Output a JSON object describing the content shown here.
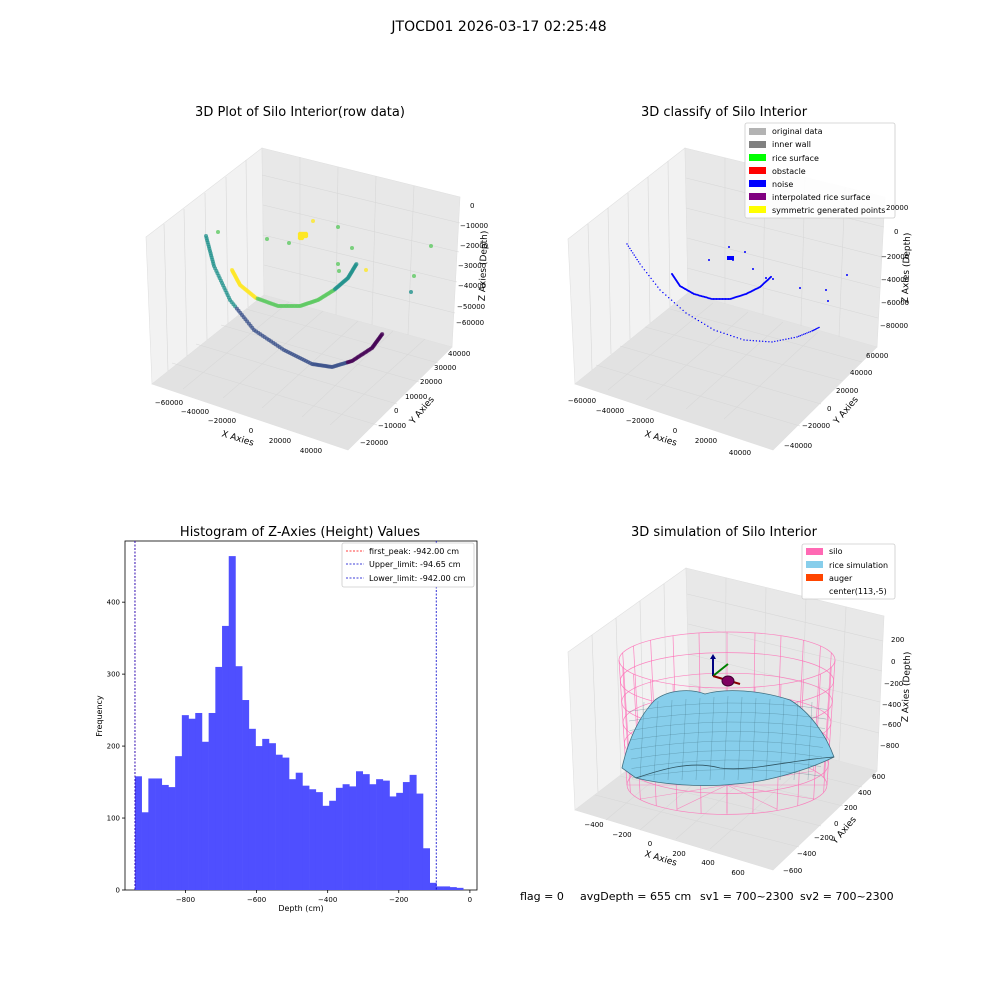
{
  "figure": {
    "suptitle": "JTOCD01 2026-03-17 02:25:48",
    "footer": {
      "flag": "flag = 0",
      "avg_depth": "avgDepth = 655 cm",
      "sv1": "sv1 = 700~2300",
      "sv2": "sv2 = 700~2300"
    }
  },
  "colors": {
    "histogram_bar": "#4f4fff",
    "first_peak_line": "#ff0000",
    "limit_line": "#0000cc",
    "pane": "#f2f2f2",
    "grid": "#d9d9d9",
    "viridis": [
      "#440154",
      "#3b528b",
      "#21918c",
      "#5ec962",
      "#fde725"
    ],
    "classify_blue": "#0000ff",
    "silo_pink": "#ff69b4",
    "rice_blue": "#87ceeb",
    "auger_orange": "#ff4500"
  },
  "chart_data": [
    {
      "type": "scatter",
      "title": "3D Plot of Silo Interior(row data)",
      "xlabel": "X Axies",
      "ylabel": "Y Axies",
      "zlabel": "Z Axies (Depth)",
      "xticks": [
        "−60000",
        "−40000",
        "−20000",
        "0",
        "20000",
        "40000"
      ],
      "yticks": [
        "−20000",
        "−10000",
        "0",
        "10000",
        "20000",
        "30000",
        "40000"
      ],
      "zticks": [
        "0",
        "−10000",
        "−20000",
        "−30000",
        "−40000",
        "−50000",
        "−60000"
      ],
      "colormap": "viridis",
      "series": [
        {
          "points": [
            {
              "x": -62000,
              "y": 5000,
              "z": -18000
            },
            {
              "x": -55000,
              "y": 0,
              "z": -35000
            },
            {
              "x": -45000,
              "y": -5000,
              "z": -52000
            },
            {
              "x": -30000,
              "y": -10000,
              "z": -62000
            },
            {
              "x": -10000,
              "y": -15000,
              "z": -66000
            },
            {
              "x": 10000,
              "y": -18000,
              "z": -64000
            },
            {
              "x": 30000,
              "y": -20000,
              "z": -56000
            },
            {
              "x": 45000,
              "y": -22000,
              "z": -45000
            }
          ]
        },
        {
          "points": [
            {
              "x": -40000,
              "y": 20000,
              "z": -22000
            },
            {
              "x": -30000,
              "y": 15000,
              "z": -34000
            },
            {
              "x": -15000,
              "y": 12000,
              "z": -40000
            },
            {
              "x": 0,
              "y": 15000,
              "z": -40000
            },
            {
              "x": 15000,
              "y": 20000,
              "z": -34000
            },
            {
              "x": 30000,
              "y": 30000,
              "z": -22000
            }
          ]
        },
        {
          "points": [
            {
              "x": -38000,
              "y": 30000,
              "z": -8000
            },
            {
              "x": -20000,
              "y": 35000,
              "z": -12000
            },
            {
              "x": 0,
              "y": 38000,
              "z": -4000
            },
            {
              "x": 10000,
              "y": 30000,
              "z": -16000
            },
            {
              "x": 20000,
              "y": 35000,
              "z": -24000
            },
            {
              "x": 40000,
              "y": 30000,
              "z": -10000
            }
          ]
        }
      ]
    },
    {
      "type": "scatter",
      "title": "3D classify of Silo Interior",
      "xlabel": "X Axies",
      "ylabel": "Y Axies",
      "zlabel": "Z Axies (Depth)",
      "xticks": [
        "−60000",
        "−40000",
        "−20000",
        "0",
        "20000",
        "40000"
      ],
      "yticks": [
        "−40000",
        "−20000",
        "0",
        "20000",
        "40000",
        "60000"
      ],
      "zticks": [
        "20000",
        "0",
        "−20000",
        "−40000",
        "−60000",
        "−80000"
      ],
      "legend": {
        "placement": "top-right",
        "entries": [
          {
            "label": "original data",
            "color": "#b3b3b3"
          },
          {
            "label": "inner wall",
            "color": "#808080"
          },
          {
            "label": "rice surface",
            "color": "#00ff00"
          },
          {
            "label": "obstacle",
            "color": "#ff0000"
          },
          {
            "label": "noise",
            "color": "#0000ff"
          },
          {
            "label": "interpolated rice surface",
            "color": "#800080"
          },
          {
            "label": "symmetric generated points",
            "color": "#ffff00"
          }
        ]
      }
    },
    {
      "type": "bar",
      "title": "Histogram of Z-Axies (Height) Values",
      "xlabel": "Depth (cm)",
      "ylabel": "Frequency",
      "xlim": [
        -970,
        20
      ],
      "ylim": [
        0,
        485
      ],
      "xticks": [
        -800,
        -600,
        -400,
        -200,
        0
      ],
      "xtick_labels": [
        "−800",
        "−600",
        "−400",
        "−200",
        "0"
      ],
      "yticks": [
        0,
        100,
        200,
        300,
        400
      ],
      "bin_start": -942,
      "bin_width": 18.84,
      "values": [
        158,
        108,
        155,
        155,
        146,
        143,
        186,
        243,
        238,
        246,
        206,
        246,
        310,
        367,
        464,
        311,
        264,
        224,
        200,
        210,
        204,
        188,
        184,
        154,
        163,
        145,
        140,
        136,
        117,
        124,
        142,
        147,
        144,
        165,
        161,
        147,
        154,
        152,
        130,
        135,
        150,
        160,
        134,
        58,
        10,
        5,
        5,
        4,
        3
      ],
      "lines": [
        {
          "label": "first_peak: -942.00 cm",
          "x": -942,
          "color": "#ff0000"
        },
        {
          "label": "Upper_limit: -94.65 cm",
          "x": -94.65,
          "color": "#0000cc"
        },
        {
          "label": "Lower_limit: -942.00 cm",
          "x": -942,
          "color": "#0000cc"
        }
      ],
      "legend_placement": "top-right"
    },
    {
      "type": "surface",
      "title": "3D simulation of Silo Interior",
      "xlabel": "X Axies",
      "ylabel": "Y Axies",
      "zlabel": "Z Axies (Depth)",
      "xticks": [
        "−400",
        "−200",
        "0",
        "200",
        "400",
        "600"
      ],
      "yticks": [
        "−600",
        "−400",
        "−200",
        "0",
        "200",
        "400",
        "600"
      ],
      "zticks": [
        "200",
        "0",
        "−200",
        "−400",
        "−600",
        "−800"
      ],
      "legend": {
        "placement": "top-right",
        "entries": [
          {
            "label": "silo",
            "color": "#ff69b4"
          },
          {
            "label": "rice simulation",
            "color": "#87ceeb"
          },
          {
            "label": "auger",
            "color": "#ff4500"
          },
          {
            "label": "center(113,-5)",
            "color": ""
          }
        ]
      }
    }
  ]
}
